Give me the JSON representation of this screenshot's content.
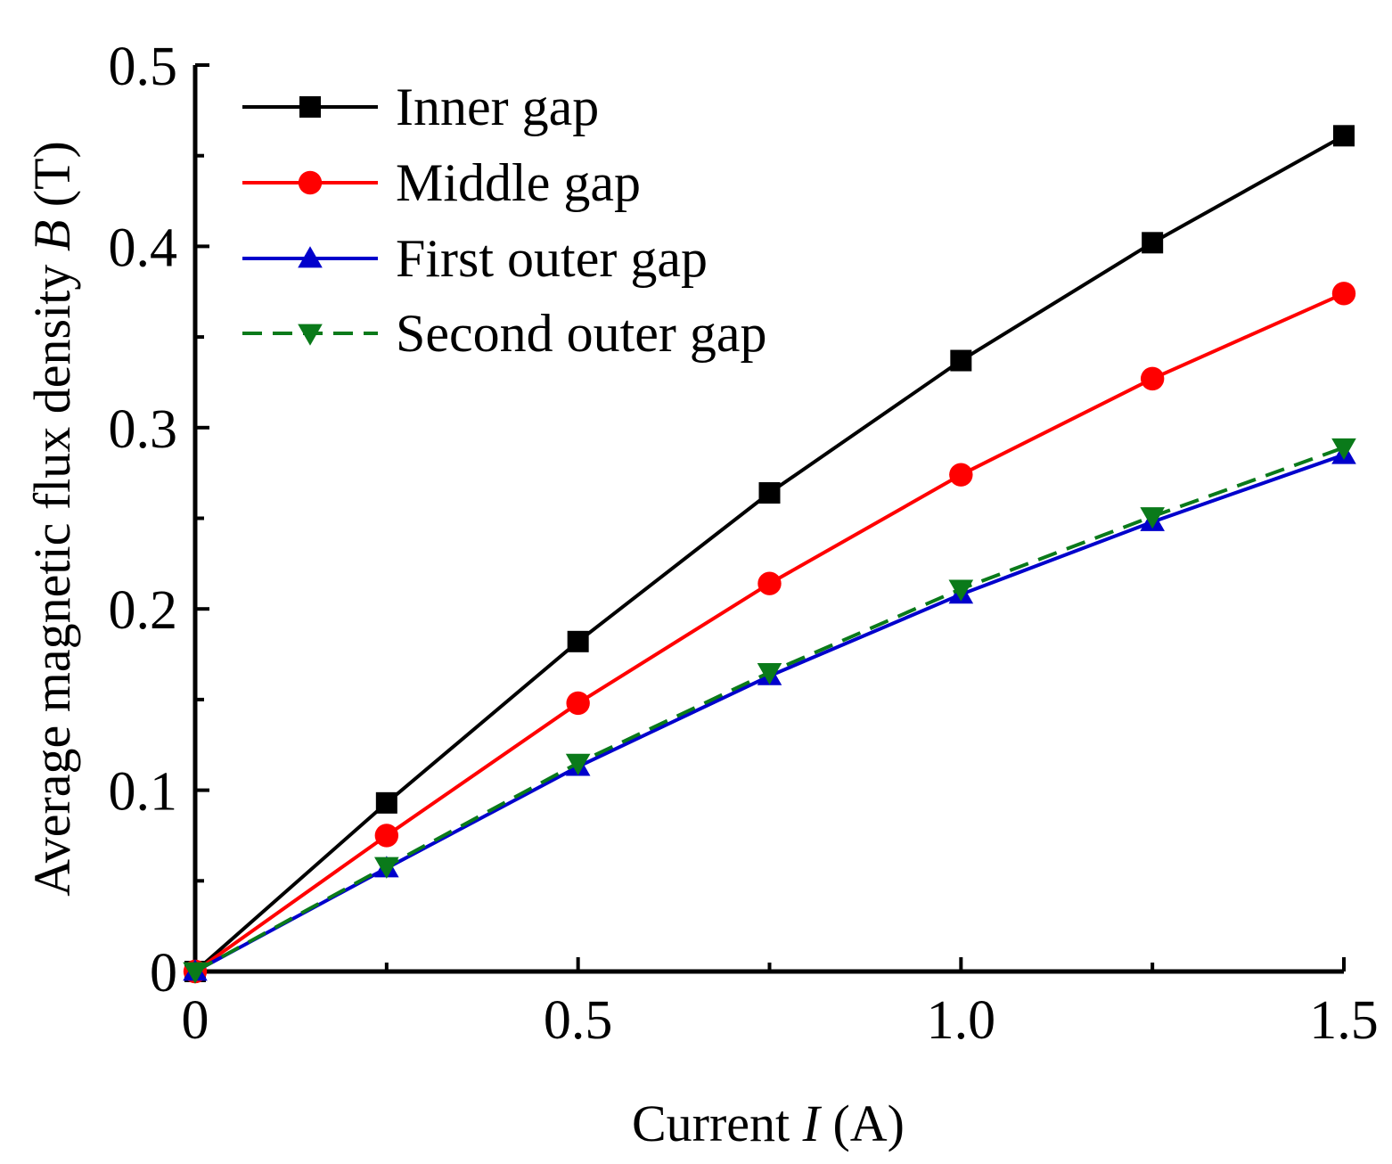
{
  "chart_data": {
    "type": "line",
    "title": "",
    "xlabel": {
      "prefix": "Current ",
      "symbol": "I",
      "suffix": " (A)"
    },
    "ylabel": {
      "prefix": "Average magnetic flux density ",
      "symbol": "B",
      "suffix": " (T)"
    },
    "xlim": [
      0,
      1.5
    ],
    "ylim": [
      0,
      0.5
    ],
    "x_ticks": [
      0,
      0.25,
      0.5,
      0.75,
      1.0,
      1.25,
      1.5
    ],
    "x_tick_labels": [
      "0",
      "",
      "0.5",
      "",
      "1.0",
      "",
      "1.5"
    ],
    "y_ticks": [
      0,
      0.05,
      0.1,
      0.15,
      0.2,
      0.25,
      0.3,
      0.35,
      0.4,
      0.45,
      0.5
    ],
    "y_tick_labels": [
      "0",
      "",
      "0.1",
      "",
      "0.2",
      "",
      "0.3",
      "",
      "0.4",
      "",
      "0.5"
    ],
    "grid": false,
    "legend_position": "top-left",
    "x": [
      0,
      0.25,
      0.5,
      0.75,
      1.0,
      1.25,
      1.5
    ],
    "series": [
      {
        "name": "Inner gap",
        "marker": "square",
        "color": "#000000",
        "dash": "solid",
        "values": [
          0,
          0.093,
          0.182,
          0.264,
          0.337,
          0.402,
          0.461
        ]
      },
      {
        "name": "Middle gap",
        "marker": "circle",
        "color": "#ff0000",
        "dash": "solid",
        "values": [
          0,
          0.075,
          0.148,
          0.214,
          0.274,
          0.327,
          0.374
        ]
      },
      {
        "name": "First outer gap",
        "marker": "triangle-up",
        "color": "#0000cc",
        "dash": "solid",
        "values": [
          0,
          0.057,
          0.113,
          0.163,
          0.208,
          0.248,
          0.285
        ]
      },
      {
        "name": "Second outer gap",
        "marker": "triangle-down",
        "color": "#0a7a1a",
        "dash": "dashed",
        "values": [
          0,
          0.058,
          0.115,
          0.165,
          0.211,
          0.251,
          0.289
        ]
      }
    ]
  }
}
